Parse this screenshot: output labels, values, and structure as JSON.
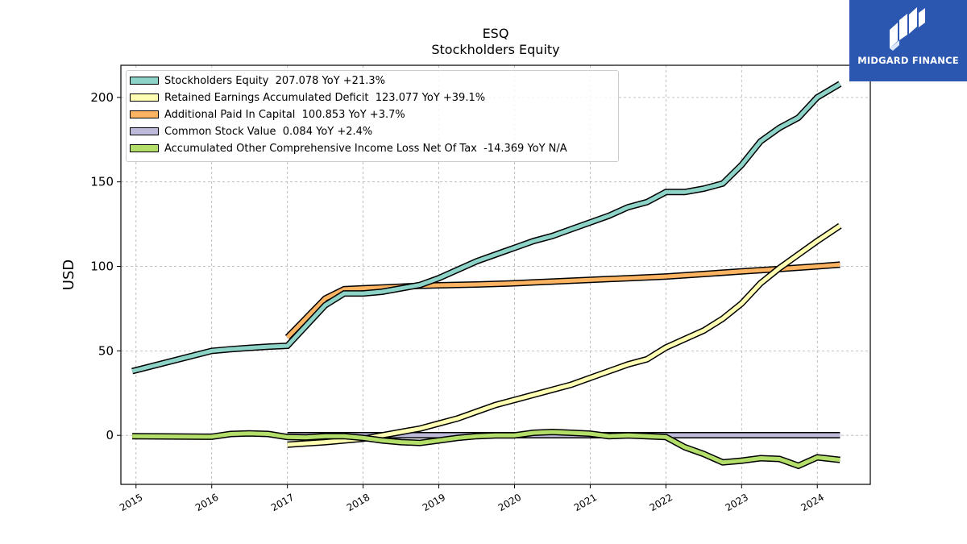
{
  "title_line1": "ESQ",
  "title_line2": "Stockholders  Equity",
  "logo": {
    "text": "MIDGARD FINANCE",
    "background": "#2b57b0"
  },
  "chart_data": {
    "type": "line",
    "title": "ESQ\nStockholders  Equity",
    "xlabel": "",
    "ylabel": "USD",
    "xlim": [
      2014.8,
      2024.7
    ],
    "ylim": [
      -29,
      219
    ],
    "grid": true,
    "legend_position": "top-left",
    "x_ticks": [
      2015,
      2016,
      2017,
      2018,
      2019,
      2020,
      2021,
      2022,
      2023,
      2024
    ],
    "x_tick_labels": [
      "2015",
      "2016",
      "2017",
      "2018",
      "2019",
      "2020",
      "2021",
      "2022",
      "2023",
      "2024"
    ],
    "y_ticks": [
      0,
      50,
      100,
      150,
      200
    ],
    "y_tick_labels": [
      "0",
      "50",
      "100",
      "150",
      "200"
    ],
    "series": [
      {
        "name": "Stockholders Equity",
        "legend_label": "Stockholders Equity  207.078 YoY +21.3%",
        "color": "#8dd3c7",
        "x": [
          2014.95,
          2016.0,
          2016.25,
          2016.5,
          2016.75,
          2017.0,
          2017.5,
          2017.75,
          2018.0,
          2018.25,
          2018.5,
          2018.75,
          2019.0,
          2019.25,
          2019.5,
          2019.75,
          2020.0,
          2020.25,
          2020.5,
          2020.75,
          2021.0,
          2021.25,
          2021.5,
          2021.75,
          2022.0,
          2022.25,
          2022.5,
          2022.75,
          2023.0,
          2023.25,
          2023.5,
          2023.75,
          2024.0,
          2024.3
        ],
        "y": [
          38,
          50,
          51,
          51.8,
          52.5,
          53,
          77,
          84,
          84,
          85,
          87,
          89,
          93,
          98,
          103,
          107,
          111,
          115,
          118,
          122,
          126,
          130,
          135,
          138,
          144,
          144,
          146,
          149,
          160,
          174,
          182,
          188,
          200,
          208
        ]
      },
      {
        "name": "Retained Earnings Accumulated Deficit",
        "legend_label": "Retained Earnings Accumulated Deficit  123.077 YoY +39.1%",
        "color": "#ffffb3",
        "x": [
          2017.0,
          2017.5,
          2017.75,
          2018.0,
          2018.25,
          2018.5,
          2018.75,
          2019.0,
          2019.25,
          2019.5,
          2019.75,
          2020.0,
          2020.25,
          2020.5,
          2020.75,
          2021.0,
          2021.25,
          2021.5,
          2021.75,
          2022.0,
          2022.25,
          2022.5,
          2022.75,
          2023.0,
          2023.25,
          2023.5,
          2023.75,
          2024.0,
          2024.3
        ],
        "y": [
          -5.5,
          -4,
          -3,
          -2,
          0,
          2,
          4,
          7,
          10,
          14,
          18,
          21,
          24,
          27,
          30,
          34,
          38,
          42,
          45,
          52,
          57,
          62,
          69,
          78,
          90,
          99,
          107,
          115,
          124
        ]
      },
      {
        "name": "Additional Paid In Capital",
        "legend_label": "Additional Paid In Capital  100.853 YoY +3.7%",
        "color": "#fdb462",
        "x": [
          2017.0,
          2017.5,
          2017.75,
          2018.0,
          2018.25,
          2018.5,
          2018.75,
          2019.0,
          2019.5,
          2020.0,
          2020.25,
          2020.5,
          2021.0,
          2021.5,
          2022.0,
          2022.5,
          2023.0,
          2023.5,
          2024.0,
          2024.3
        ],
        "y": [
          58,
          81,
          86.5,
          87,
          87.5,
          88,
          88.5,
          88.8,
          89.3,
          90,
          90.5,
          91,
          92,
          93,
          94,
          95.5,
          97,
          98.5,
          100,
          101
        ]
      },
      {
        "name": "Common Stock Value",
        "legend_label": "Common Stock Value  0.084 YoY +2.4%",
        "color": "#bebada",
        "x": [
          2017.0,
          2024.3
        ],
        "y": [
          0.08,
          0.08
        ]
      },
      {
        "name": "Accumulated Other Comprehensive Income Loss Net Of Tax",
        "legend_label": "Accumulated Other Comprehensive Income Loss Net Of Tax  -14.369 YoY N/A",
        "color": "#b3de69",
        "x": [
          2014.95,
          2016.0,
          2016.25,
          2016.5,
          2016.75,
          2017.0,
          2017.25,
          2017.5,
          2017.75,
          2018.0,
          2018.25,
          2018.5,
          2018.75,
          2019.0,
          2019.25,
          2019.5,
          2019.75,
          2020.0,
          2020.25,
          2020.5,
          2020.75,
          2021.0,
          2021.25,
          2021.5,
          2021.75,
          2022.0,
          2022.25,
          2022.5,
          2022.75,
          2023.0,
          2023.25,
          2023.5,
          2023.75,
          2024.0,
          2024.3
        ],
        "y": [
          -0.5,
          -0.8,
          0.8,
          1.2,
          0.8,
          -1,
          -1.2,
          -0.5,
          -0.5,
          -1.5,
          -3,
          -4,
          -4.5,
          -3,
          -1.5,
          -0.5,
          0,
          0,
          1.5,
          2,
          1.5,
          1,
          -0.5,
          0,
          -0.5,
          -1,
          -7,
          -11,
          -16,
          -15,
          -13.5,
          -14,
          -18,
          -13,
          -14.5
        ]
      }
    ]
  }
}
